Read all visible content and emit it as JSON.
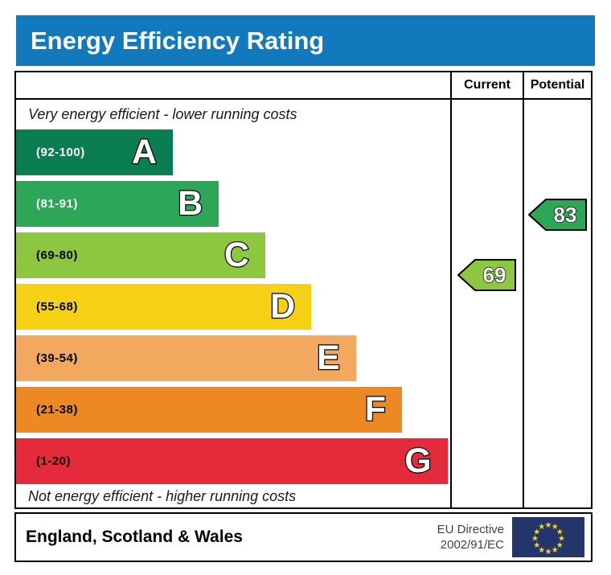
{
  "header": {
    "title": "Energy Efficiency Rating",
    "bg_color": "#1379bd"
  },
  "table": {
    "columns": {
      "current": "Current",
      "potential": "Potential"
    },
    "top_caption": "Very energy efficient - lower running costs",
    "bottom_caption": "Not energy efficient - higher running costs"
  },
  "chart_data": {
    "type": "bar",
    "title": "Energy Efficiency Rating",
    "bands": [
      {
        "letter": "A",
        "range": "(92-100)",
        "min": 92,
        "max": 100,
        "color": "#0a7d52",
        "label_color": "#ffffff",
        "width_pct": 36.1
      },
      {
        "letter": "B",
        "range": "(81-91)",
        "min": 81,
        "max": 91,
        "color": "#2ea657",
        "label_color": "#ffffff",
        "width_pct": 46.7
      },
      {
        "letter": "C",
        "range": "(69-80)",
        "min": 69,
        "max": 80,
        "color": "#8dc63f",
        "label_color": "#000000",
        "width_pct": 57.4
      },
      {
        "letter": "D",
        "range": "(55-68)",
        "min": 55,
        "max": 68,
        "color": "#f7d116",
        "label_color": "#000000",
        "width_pct": 68.0
      },
      {
        "letter": "E",
        "range": "(39-54)",
        "min": 39,
        "max": 54,
        "color": "#f2a95f",
        "label_color": "#000000",
        "width_pct": 78.3
      },
      {
        "letter": "F",
        "range": "(21-38)",
        "min": 21,
        "max": 38,
        "color": "#ec8922",
        "label_color": "#000000",
        "width_pct": 88.9
      },
      {
        "letter": "G",
        "range": "(1-20)",
        "min": 1,
        "max": 20,
        "color": "#e42b3c",
        "label_color": "#000000",
        "width_pct": 99.4
      }
    ],
    "current": {
      "value": 69,
      "band": "C",
      "color": "#8dc63f"
    },
    "potential": {
      "value": 83,
      "band": "B",
      "color": "#2ea657"
    }
  },
  "footer": {
    "region": "England, Scotland & Wales",
    "directive_line1": "EU Directive",
    "directive_line2": "2002/91/EC",
    "flag_colors": {
      "field": "#24356b",
      "stars": "#f5d130"
    }
  }
}
